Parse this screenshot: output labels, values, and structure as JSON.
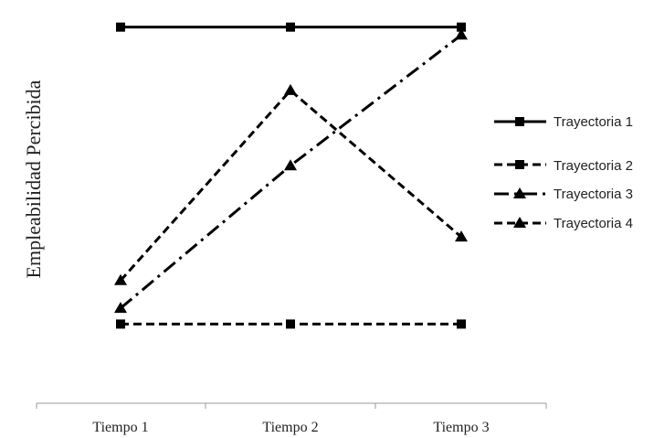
{
  "chart_data": {
    "type": "line",
    "ylabel": "Empleabilidad Percibida",
    "xlabel": "",
    "categories": [
      "Tiempo 1",
      "Tiempo 2",
      "Tiempo 3"
    ],
    "ylim": [
      0,
      10
    ],
    "y_ticks_shown": false,
    "grid": false,
    "legend_position": "right",
    "series": [
      {
        "name": "Trayectoria 1",
        "values": [
          9.5,
          9.5,
          9.5
        ],
        "line": "solid",
        "marker": "square"
      },
      {
        "name": "Trayectoria 2",
        "values": [
          2.0,
          2.0,
          2.0
        ],
        "line": "dashed",
        "marker": "square"
      },
      {
        "name": "Trayectoria 3",
        "values": [
          2.4,
          6.0,
          9.3
        ],
        "line": "dashdot",
        "marker": "triangle"
      },
      {
        "name": "Trayectoria 4",
        "values": [
          3.1,
          7.9,
          4.2
        ],
        "line": "dashed",
        "marker": "triangle"
      }
    ]
  }
}
